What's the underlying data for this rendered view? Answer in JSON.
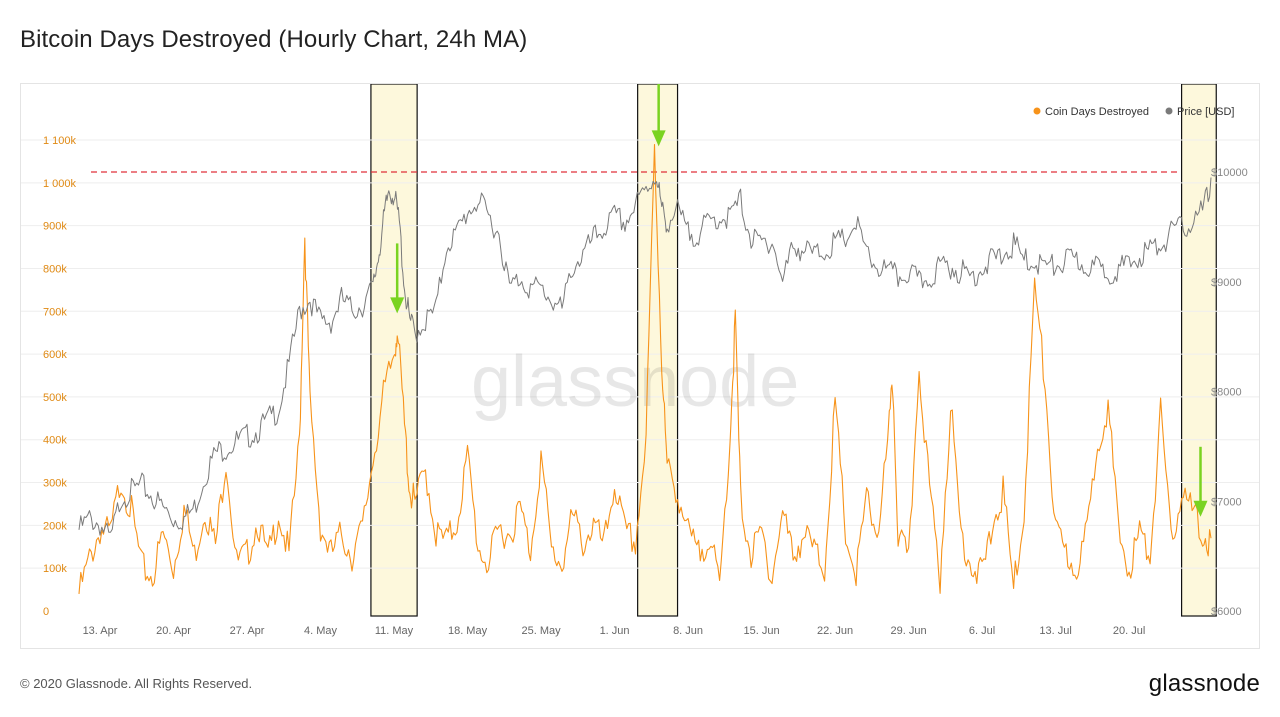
{
  "title": "Bitcoin Days Destroyed (Hourly Chart, 24h MA)",
  "footer": {
    "copyright": "© 2020 Glassnode. All Rights Reserved.",
    "brand": "glassnode"
  },
  "watermark": "glassnode",
  "colors": {
    "cdd": "#f7931a",
    "price": "#7a7a7a",
    "reference_line": "#e0303a",
    "highlight_fill": "#fdf8dc",
    "arrow": "#7ad321",
    "axis_left": "#e08a14",
    "axis_right": "#888888"
  },
  "chart_data": {
    "type": "line",
    "title": "Bitcoin Days Destroyed (Hourly Chart, 24h MA)",
    "x_start": "13. Apr",
    "x_ticks": [
      "13. Apr",
      "20. Apr",
      "27. Apr",
      "4. May",
      "11. May",
      "18. May",
      "25. May",
      "1. Jun",
      "8. Jun",
      "15. Jun",
      "22. Jun",
      "29. Jun",
      "6. Jul",
      "13. Jul",
      "20. Jul"
    ],
    "x_tick_days": [
      0,
      7,
      14,
      21,
      28,
      35,
      42,
      49,
      56,
      63,
      70,
      77,
      84,
      91,
      98
    ],
    "x_range_days": [
      -2,
      105.8
    ],
    "y_left": {
      "ticks": [
        0,
        100000,
        200000,
        300000,
        400000,
        500000,
        600000,
        700000,
        800000,
        900000,
        1000000,
        1100000
      ],
      "tick_labels": [
        "0",
        "100k",
        "200k",
        "300k",
        "400k",
        "500k",
        "600k",
        "700k",
        "800k",
        "900k",
        "1 000k",
        "1 100k"
      ],
      "range": [
        0,
        1100000
      ]
    },
    "y_right": {
      "ticks": [
        6000,
        7000,
        8000,
        9000,
        10000
      ],
      "tick_labels": [
        "$6000",
        "$7000",
        "$8000",
        "$9000",
        "$10000"
      ],
      "range": [
        6000,
        10000
      ]
    },
    "legend": {
      "placement": "top-right",
      "items": [
        {
          "label": "Coin Days Destroyed",
          "color": "#f7931a"
        },
        {
          "label": "Price [USD]",
          "color": "#7a7a7a"
        }
      ]
    },
    "reference_line": {
      "value": 10000,
      "axis": "right",
      "style": "dashed"
    },
    "highlights": [
      {
        "start_day": 25.8,
        "end_day": 30.2
      },
      {
        "start_day": 51.2,
        "end_day": 55.0
      },
      {
        "start_day": 103.0,
        "end_day": 106.3
      }
    ],
    "arrows": [
      {
        "day": 28.3,
        "value": 695000,
        "axis": "left"
      },
      {
        "day": 53.2,
        "value": 1085000,
        "axis": "left"
      },
      {
        "day": 104.8,
        "value": 220000,
        "axis": "left"
      }
    ],
    "series": [
      {
        "name": "Coin Days Destroyed",
        "axis": "left",
        "points": [
          [
            -2,
            60000
          ],
          [
            -1,
            140000
          ],
          [
            0,
            210000
          ],
          [
            1,
            200000
          ],
          [
            2,
            330000
          ],
          [
            3,
            250000
          ],
          [
            4,
            120000
          ],
          [
            5,
            100000
          ],
          [
            6,
            200000
          ],
          [
            7,
            120000
          ],
          [
            8,
            260000
          ],
          [
            9,
            150000
          ],
          [
            10,
            260000
          ],
          [
            11,
            170000
          ],
          [
            12,
            380000
          ],
          [
            13,
            130000
          ],
          [
            14,
            150000
          ],
          [
            15,
            230000
          ],
          [
            16,
            140000
          ],
          [
            17,
            250000
          ],
          [
            18,
            150000
          ],
          [
            19,
            420000
          ],
          [
            19.5,
            900000
          ],
          [
            20,
            500000
          ],
          [
            21,
            220000
          ],
          [
            22,
            150000
          ],
          [
            23,
            200000
          ],
          [
            24,
            150000
          ],
          [
            25,
            210000
          ],
          [
            26,
            380000
          ],
          [
            27,
            520000
          ],
          [
            28,
            620000
          ],
          [
            28.3,
            680000
          ],
          [
            29,
            450000
          ],
          [
            29.5,
            300000
          ],
          [
            30,
            270000
          ],
          [
            31,
            350000
          ],
          [
            32,
            200000
          ],
          [
            33,
            180000
          ],
          [
            34,
            230000
          ],
          [
            35,
            380000
          ],
          [
            36,
            170000
          ],
          [
            37,
            130000
          ],
          [
            38,
            210000
          ],
          [
            39,
            200000
          ],
          [
            40,
            260000
          ],
          [
            41,
            160000
          ],
          [
            42,
            380000
          ],
          [
            43,
            160000
          ],
          [
            44,
            130000
          ],
          [
            45,
            240000
          ],
          [
            46,
            180000
          ],
          [
            47,
            220000
          ],
          [
            48,
            170000
          ],
          [
            49,
            320000
          ],
          [
            50,
            200000
          ],
          [
            51,
            180000
          ],
          [
            52,
            420000
          ],
          [
            52.8,
            1100000
          ],
          [
            53.5,
            600000
          ],
          [
            54,
            350000
          ],
          [
            55,
            300000
          ],
          [
            56,
            200000
          ],
          [
            57,
            150000
          ],
          [
            58,
            200000
          ],
          [
            59,
            70000
          ],
          [
            60,
            430000
          ],
          [
            60.5,
            700000
          ],
          [
            61,
            280000
          ],
          [
            62,
            150000
          ],
          [
            63,
            200000
          ],
          [
            64,
            100000
          ],
          [
            65,
            250000
          ],
          [
            66,
            150000
          ],
          [
            67,
            200000
          ],
          [
            68,
            160000
          ],
          [
            69,
            120000
          ],
          [
            70,
            500000
          ],
          [
            71,
            200000
          ],
          [
            72,
            100000
          ],
          [
            73,
            280000
          ],
          [
            74,
            200000
          ],
          [
            75,
            400000
          ],
          [
            75.5,
            550000
          ],
          [
            76,
            200000
          ],
          [
            77,
            130000
          ],
          [
            78,
            600000
          ],
          [
            79,
            300000
          ],
          [
            80,
            100000
          ],
          [
            81,
            500000
          ],
          [
            82,
            200000
          ],
          [
            83,
            130000
          ],
          [
            84,
            100000
          ],
          [
            85,
            220000
          ],
          [
            86,
            300000
          ],
          [
            87,
            70000
          ],
          [
            88,
            250000
          ],
          [
            89,
            780000
          ],
          [
            90,
            550000
          ],
          [
            91,
            200000
          ],
          [
            92,
            150000
          ],
          [
            93,
            120000
          ],
          [
            94,
            200000
          ],
          [
            95,
            420000
          ],
          [
            96,
            500000
          ],
          [
            97,
            200000
          ],
          [
            98,
            120000
          ],
          [
            99,
            200000
          ],
          [
            100,
            150000
          ],
          [
            101,
            480000
          ],
          [
            102,
            180000
          ],
          [
            103,
            300000
          ],
          [
            104,
            250000
          ],
          [
            105,
            200000
          ],
          [
            105.8,
            170000
          ]
        ]
      },
      {
        "name": "Price [USD]",
        "axis": "right",
        "points": [
          [
            -2,
            6800
          ],
          [
            -1,
            6900
          ],
          [
            0,
            6850
          ],
          [
            1,
            6700
          ],
          [
            2,
            7100
          ],
          [
            3,
            7150
          ],
          [
            4,
            7200
          ],
          [
            5,
            7100
          ],
          [
            6,
            7000
          ],
          [
            7,
            6900
          ],
          [
            8,
            6900
          ],
          [
            9,
            7000
          ],
          [
            10,
            7300
          ],
          [
            11,
            7500
          ],
          [
            12,
            7550
          ],
          [
            13,
            7600
          ],
          [
            14,
            7650
          ],
          [
            15,
            7700
          ],
          [
            16,
            7800
          ],
          [
            17,
            7900
          ],
          [
            18,
            8300
          ],
          [
            19,
            8800
          ],
          [
            20,
            8900
          ],
          [
            21,
            8700
          ],
          [
            22,
            8700
          ],
          [
            23,
            8900
          ],
          [
            24,
            8800
          ],
          [
            25,
            8850
          ],
          [
            26,
            9000
          ],
          [
            26.5,
            9300
          ],
          [
            27,
            9600
          ],
          [
            27.5,
            9900
          ],
          [
            28,
            9850
          ],
          [
            28.5,
            9600
          ],
          [
            29,
            9000
          ],
          [
            29.5,
            8700
          ],
          [
            30,
            8600
          ],
          [
            31,
            8700
          ],
          [
            32,
            8800
          ],
          [
            33,
            9400
          ],
          [
            34,
            9500
          ],
          [
            35,
            9700
          ],
          [
            36,
            9800
          ],
          [
            37,
            9650
          ],
          [
            38,
            9500
          ],
          [
            39,
            9000
          ],
          [
            40,
            9100
          ],
          [
            41,
            9000
          ],
          [
            42,
            9000
          ],
          [
            43,
            8900
          ],
          [
            44,
            8800
          ],
          [
            45,
            9200
          ],
          [
            46,
            9300
          ],
          [
            47,
            9450
          ],
          [
            48,
            9550
          ],
          [
            49,
            9650
          ],
          [
            50,
            9600
          ],
          [
            51,
            9750
          ],
          [
            52,
            9900
          ],
          [
            53,
            10050
          ],
          [
            53.5,
            9700
          ],
          [
            54,
            9600
          ],
          [
            55,
            9700
          ],
          [
            56,
            9500
          ],
          [
            57,
            9500
          ],
          [
            58,
            9600
          ],
          [
            59,
            9650
          ],
          [
            60,
            9650
          ],
          [
            61,
            9800
          ],
          [
            62,
            9450
          ],
          [
            63,
            9400
          ],
          [
            64,
            9450
          ],
          [
            65,
            9050
          ],
          [
            66,
            9400
          ],
          [
            67,
            9350
          ],
          [
            68,
            9300
          ],
          [
            69,
            9350
          ],
          [
            70,
            9400
          ],
          [
            71,
            9450
          ],
          [
            72,
            9600
          ],
          [
            73,
            9300
          ],
          [
            74,
            9200
          ],
          [
            75,
            9150
          ],
          [
            76,
            9100
          ],
          [
            77,
            9150
          ],
          [
            78,
            9050
          ],
          [
            79,
            9100
          ],
          [
            80,
            9200
          ],
          [
            81,
            9200
          ],
          [
            82,
            9150
          ],
          [
            83,
            9100
          ],
          [
            84,
            9200
          ],
          [
            85,
            9250
          ],
          [
            86,
            9300
          ],
          [
            87,
            9400
          ],
          [
            88,
            9250
          ],
          [
            89,
            9250
          ],
          [
            90,
            9200
          ],
          [
            91,
            9200
          ],
          [
            92,
            9250
          ],
          [
            93,
            9250
          ],
          [
            94,
            9200
          ],
          [
            95,
            9180
          ],
          [
            96,
            9150
          ],
          [
            97,
            9180
          ],
          [
            98,
            9200
          ],
          [
            99,
            9300
          ],
          [
            100,
            9350
          ],
          [
            101,
            9400
          ],
          [
            102,
            9500
          ],
          [
            103,
            9550
          ],
          [
            104,
            9600
          ],
          [
            105,
            9700
          ],
          [
            105.8,
            9950
          ]
        ]
      }
    ]
  }
}
